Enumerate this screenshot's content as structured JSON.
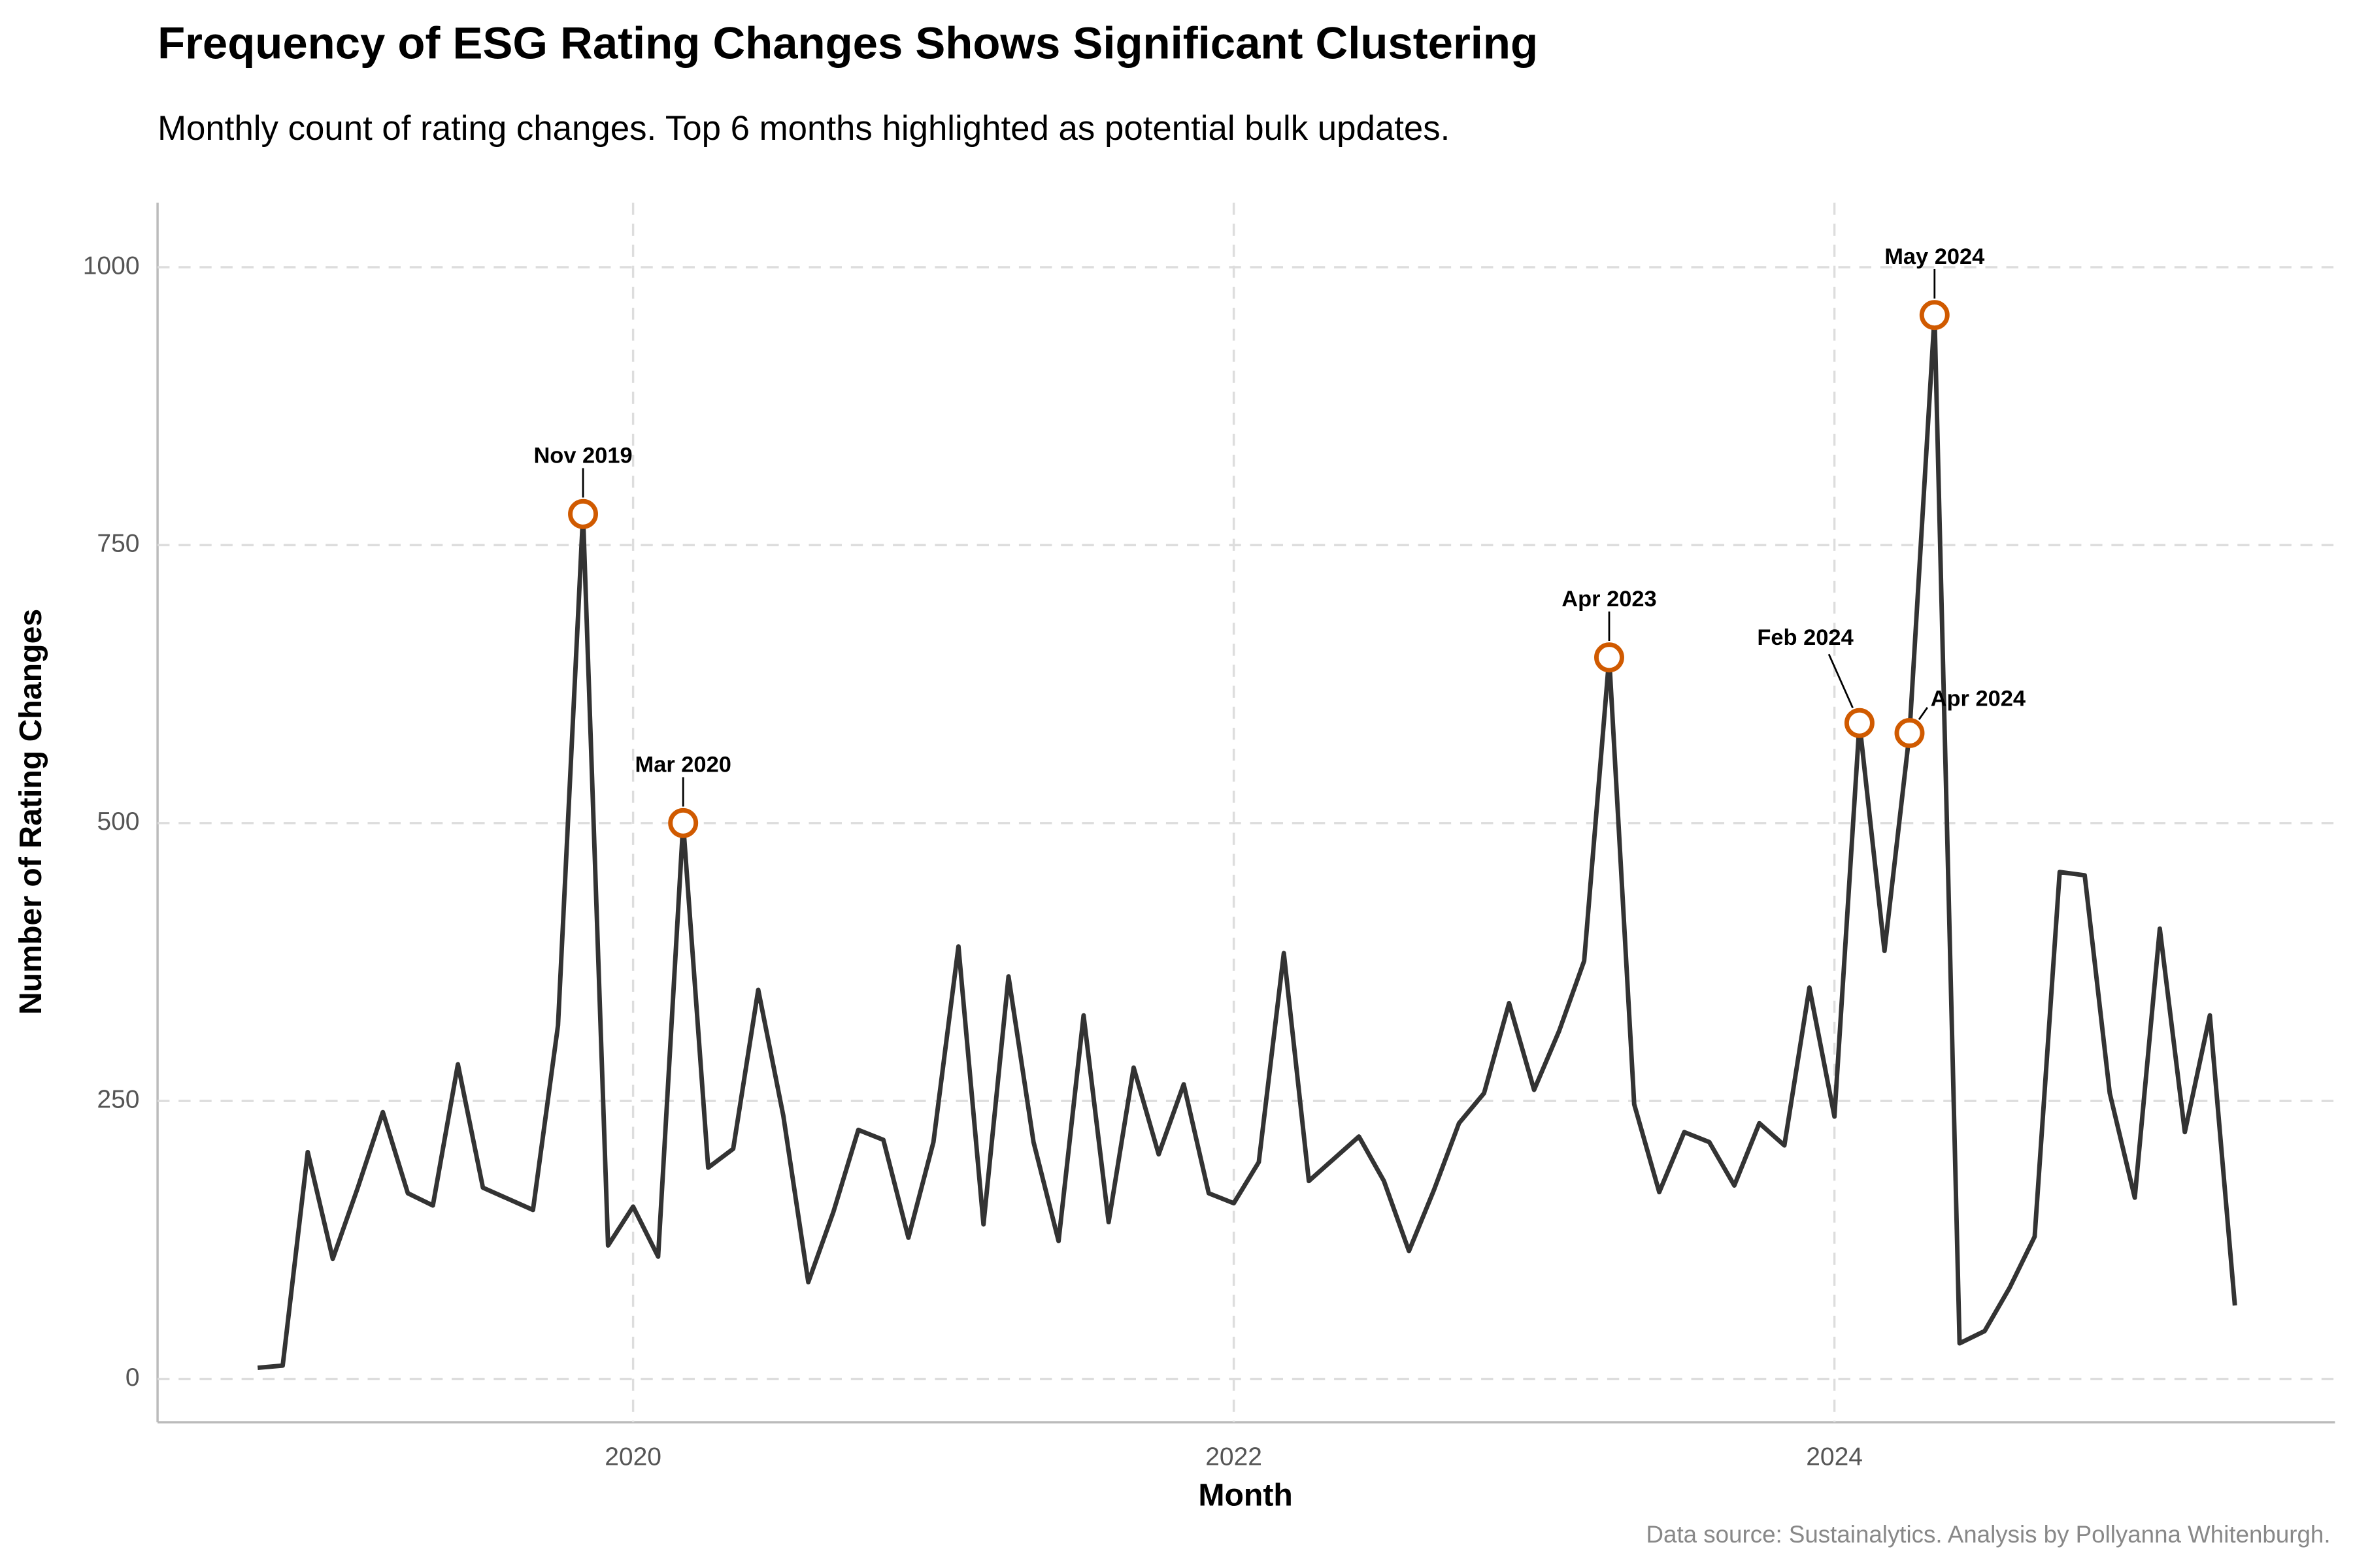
{
  "chart_data": {
    "type": "line",
    "title": "Frequency of ESG Rating Changes Shows Significant Clustering",
    "subtitle": "Monthly count of rating changes. Top 6 months highlighted as potential bulk updates.",
    "x_label": "Month",
    "y_label": "Number of Rating Changes",
    "caption": "Data source: Sustainalytics. Analysis by Pollyanna Whitenburgh.",
    "color": "#333333",
    "highlight_color": "#d05a00",
    "grid": true,
    "x": [
      "2018-10",
      "2018-11",
      "2018-12",
      "2019-01",
      "2019-02",
      "2019-03",
      "2019-04",
      "2019-05",
      "2019-06",
      "2019-07",
      "2019-08",
      "2019-09",
      "2019-10",
      "2019-11",
      "2019-12",
      "2020-01",
      "2020-02",
      "2020-03",
      "2020-04",
      "2020-05",
      "2020-06",
      "2020-07",
      "2020-08",
      "2020-09",
      "2020-10",
      "2020-11",
      "2020-12",
      "2021-01",
      "2021-02",
      "2021-03",
      "2021-04",
      "2021-05",
      "2021-06",
      "2021-07",
      "2021-08",
      "2021-09",
      "2021-10",
      "2021-11",
      "2021-12",
      "2022-01",
      "2022-02",
      "2022-03",
      "2022-04",
      "2022-05",
      "2022-06",
      "2022-07",
      "2022-08",
      "2022-09",
      "2022-10",
      "2022-11",
      "2022-12",
      "2023-01",
      "2023-02",
      "2023-03",
      "2023-04",
      "2023-05",
      "2023-06",
      "2023-07",
      "2023-08",
      "2023-09",
      "2023-10",
      "2023-11",
      "2023-12",
      "2024-01",
      "2024-02",
      "2024-03",
      "2024-04",
      "2024-05",
      "2024-06",
      "2024-07",
      "2024-08",
      "2024-09",
      "2024-10",
      "2024-11",
      "2024-12",
      "2025-01",
      "2025-02",
      "2025-03",
      "2025-04",
      "2025-05"
    ],
    "values": [
      10,
      12,
      204,
      108,
      172,
      240,
      167,
      156,
      283,
      172,
      162,
      152,
      318,
      778,
      120,
      155,
      110,
      500,
      190,
      207,
      350,
      237,
      87,
      150,
      224,
      215,
      127,
      213,
      389,
      139,
      362,
      213,
      124,
      327,
      141,
      280,
      202,
      265,
      167,
      158,
      195,
      383,
      178,
      198,
      218,
      178,
      115,
      170,
      230,
      257,
      338,
      260,
      313,
      376,
      649,
      247,
      168,
      222,
      213,
      174,
      230,
      210,
      352,
      236,
      590,
      385,
      581,
      957,
      32,
      43,
      82,
      128,
      456,
      453,
      257,
      163,
      405,
      222,
      327,
      66
    ],
    "xlim": [
      "2018-06",
      "2025-09"
    ],
    "xticks": [
      {
        "value": "2020-01",
        "label": "2020"
      },
      {
        "value": "2022-01",
        "label": "2022"
      },
      {
        "value": "2024-01",
        "label": "2024"
      }
    ],
    "ylim": [
      -39,
      1058
    ],
    "yticks": [
      0,
      250,
      500,
      750,
      1000
    ],
    "annotations": [
      {
        "x": "2019-11",
        "label": "Nov 2019"
      },
      {
        "x": "2020-03",
        "label": "Mar 2020"
      },
      {
        "x": "2023-04",
        "label": "Apr 2023"
      },
      {
        "x": "2024-02",
        "label": "Feb 2024"
      },
      {
        "x": "2024-04",
        "label": "Apr 2024"
      },
      {
        "x": "2024-05",
        "label": "May 2024"
      }
    ]
  }
}
